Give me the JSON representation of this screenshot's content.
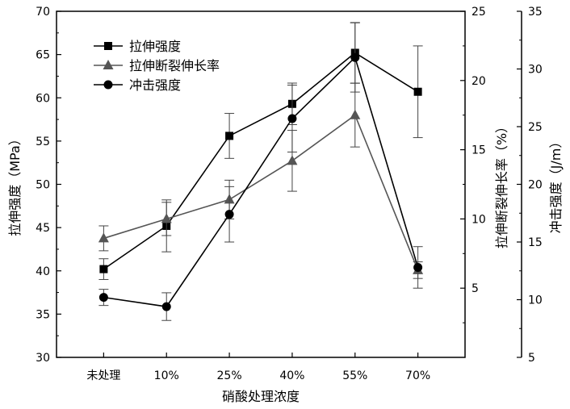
{
  "chart_data": {
    "type": "line",
    "title": "",
    "xlabel": "硝酸处理浓度",
    "categories": [
      "未处理",
      "10%",
      "25%",
      "40%",
      "55%",
      "70%"
    ],
    "axes": {
      "left": {
        "label": "拉伸强度（MPa）",
        "range": [
          30,
          70
        ],
        "ticks": [
          30,
          35,
          40,
          45,
          50,
          55,
          60,
          65,
          70
        ]
      },
      "right1": {
        "label": "拉伸断裂伸长率（%）",
        "range": [
          0,
          25
        ],
        "ticks": [
          5,
          10,
          15,
          20,
          25
        ]
      },
      "right2": {
        "label": "冲击强度（J/m）",
        "range": [
          5,
          35
        ],
        "ticks": [
          5,
          10,
          15,
          20,
          25,
          30,
          35
        ]
      }
    },
    "series": [
      {
        "name": "拉伸强度",
        "axis": "left",
        "marker": "square",
        "color": "#000000",
        "values": [
          40.2,
          45.2,
          55.6,
          59.3,
          65.2,
          60.7
        ],
        "errors": [
          1.2,
          3.0,
          2.6,
          2.4,
          3.5,
          5.3
        ]
      },
      {
        "name": "拉伸断裂伸长率",
        "axis": "right1",
        "marker": "triangle",
        "color": "#555555",
        "values": [
          8.6,
          10.0,
          11.4,
          14.2,
          17.5,
          6.3
        ],
        "errors": [
          0.9,
          1.2,
          1.4,
          2.2,
          2.3,
          0.6
        ]
      },
      {
        "name": "冲击强度",
        "axis": "right2",
        "marker": "circle",
        "color": "#000000",
        "values": [
          10.2,
          9.4,
          17.4,
          25.7,
          31.0,
          12.8
        ],
        "errors": [
          0.7,
          1.2,
          2.4,
          2.9,
          3.0,
          1.8
        ]
      }
    ],
    "legend_position": "top-left",
    "grid": false
  }
}
